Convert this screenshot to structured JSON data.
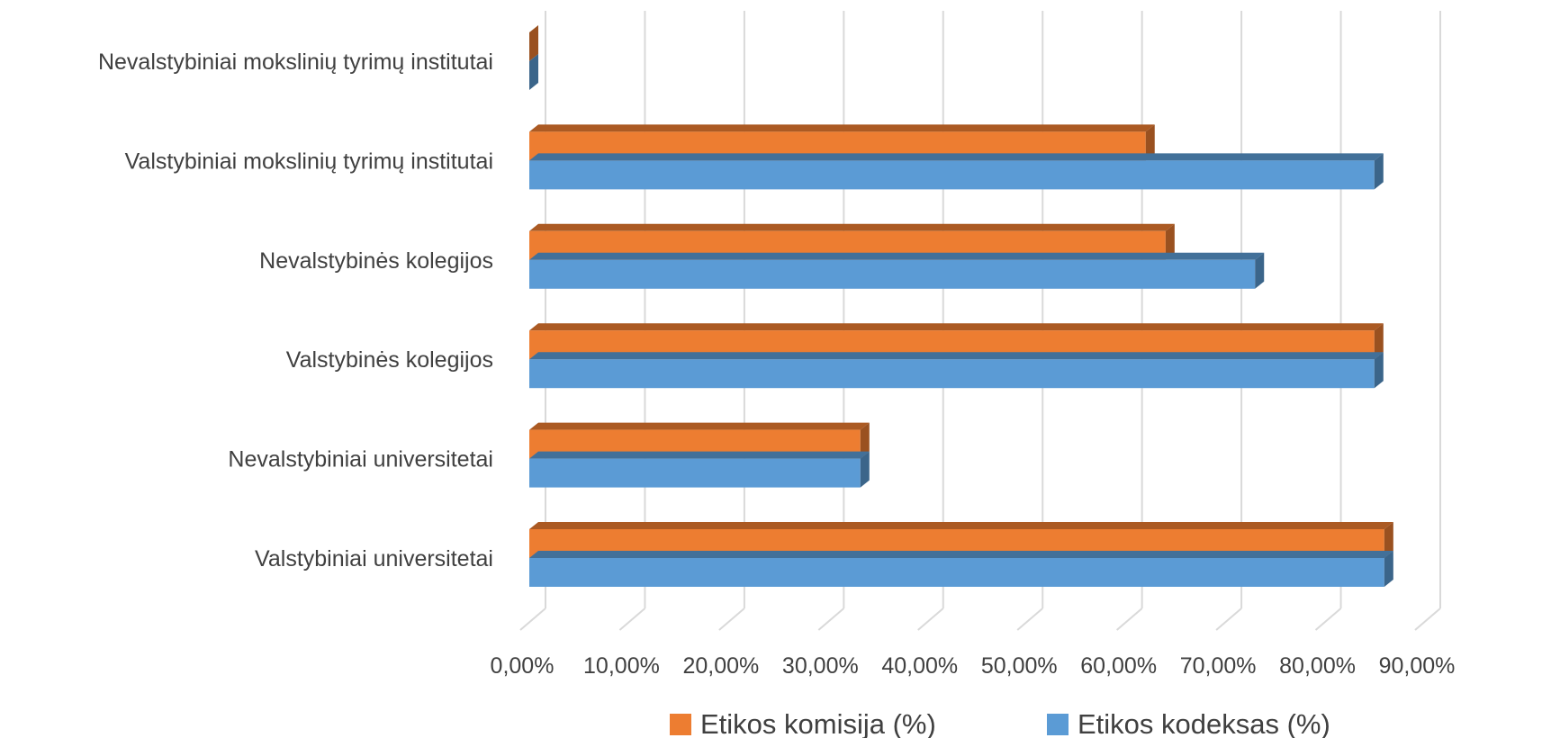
{
  "chart_data": {
    "type": "bar",
    "orientation": "horizontal",
    "style": "3d-clustered",
    "categories": [
      "Valstybiniai universitetai",
      "Nevalstybiniai universitetai",
      "Valstybinės kolegijos",
      "Nevalstybinės kolegijos",
      "Valstybiniai mokslinių tyrimų institutai",
      "Nevalstybiniai mokslinių tyrimų institutai"
    ],
    "series": [
      {
        "name": "Etikos komisija (%)",
        "values": [
          86,
          33.3,
          85,
          64,
          62,
          0
        ],
        "color": "#ED7D31"
      },
      {
        "name": "Etikos kodeksas (%)",
        "values": [
          86,
          33.3,
          85,
          73,
          85,
          0
        ],
        "color": "#5B9BD5"
      }
    ],
    "xlim": [
      0,
      90
    ],
    "ticks": [
      "0,00%",
      "10,00%",
      "20,00%",
      "30,00%",
      "40,00%",
      "50,00%",
      "60,00%",
      "70,00%",
      "80,00%",
      "90,00%"
    ],
    "grid": true,
    "legend": "bottom"
  }
}
